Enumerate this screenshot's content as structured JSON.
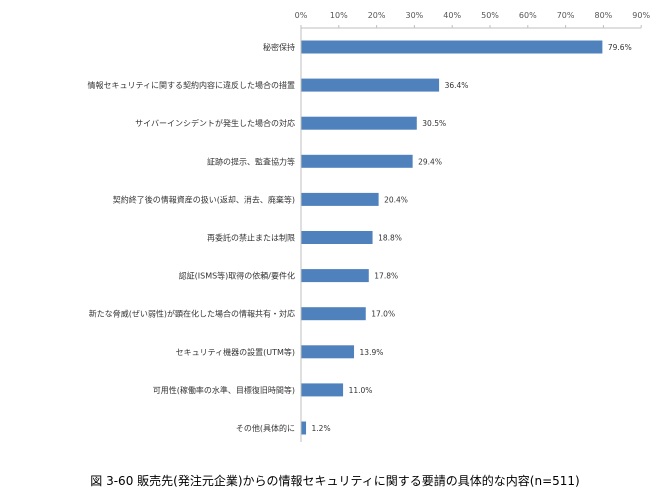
{
  "chart_data": {
    "type": "bar",
    "orientation": "horizontal",
    "title": "",
    "caption": "図 3-60 販売先(発注元企業)からの情報セキュリティに関する要請の具体的な内容(n=511)",
    "categories": [
      "秘密保持",
      "情報セキュリティに関する契約内容に違反した場合の措置",
      "サイバーインシデントが発生した場合の対応",
      "証跡の提示、監査協力等",
      "契約終了後の情報資産の扱い(返却、消去、廃棄等)",
      "再委託の禁止または制限",
      "認証(ISMS等)取得の依頼/要件化",
      "新たな脅威(ぜい弱性)が顕在化した場合の情報共有・対応",
      "セキュリティ機器の設置(UTM等)",
      "可用性(稼働率の水準、目標復旧時間等)",
      "その他(具体的に"
    ],
    "values": [
      79.6,
      36.4,
      30.5,
      29.4,
      20.4,
      18.8,
      17.8,
      17.0,
      13.9,
      11.0,
      1.2
    ],
    "value_labels": [
      "79.6%",
      "36.4%",
      "30.5%",
      "29.4%",
      "20.4%",
      "18.8%",
      "17.8%",
      "17.0%",
      "13.9%",
      "11.0%",
      "1.2%"
    ],
    "ticks": [
      0,
      10,
      20,
      30,
      40,
      50,
      60,
      70,
      80,
      90
    ],
    "tick_labels": [
      "0%",
      "10%",
      "20%",
      "30%",
      "40%",
      "50%",
      "60%",
      "70%",
      "80%",
      "90%"
    ],
    "xlim": [
      0,
      90
    ],
    "axis_position": "top",
    "grid": false,
    "legend": "none",
    "bar_color": "#4f81bd"
  }
}
